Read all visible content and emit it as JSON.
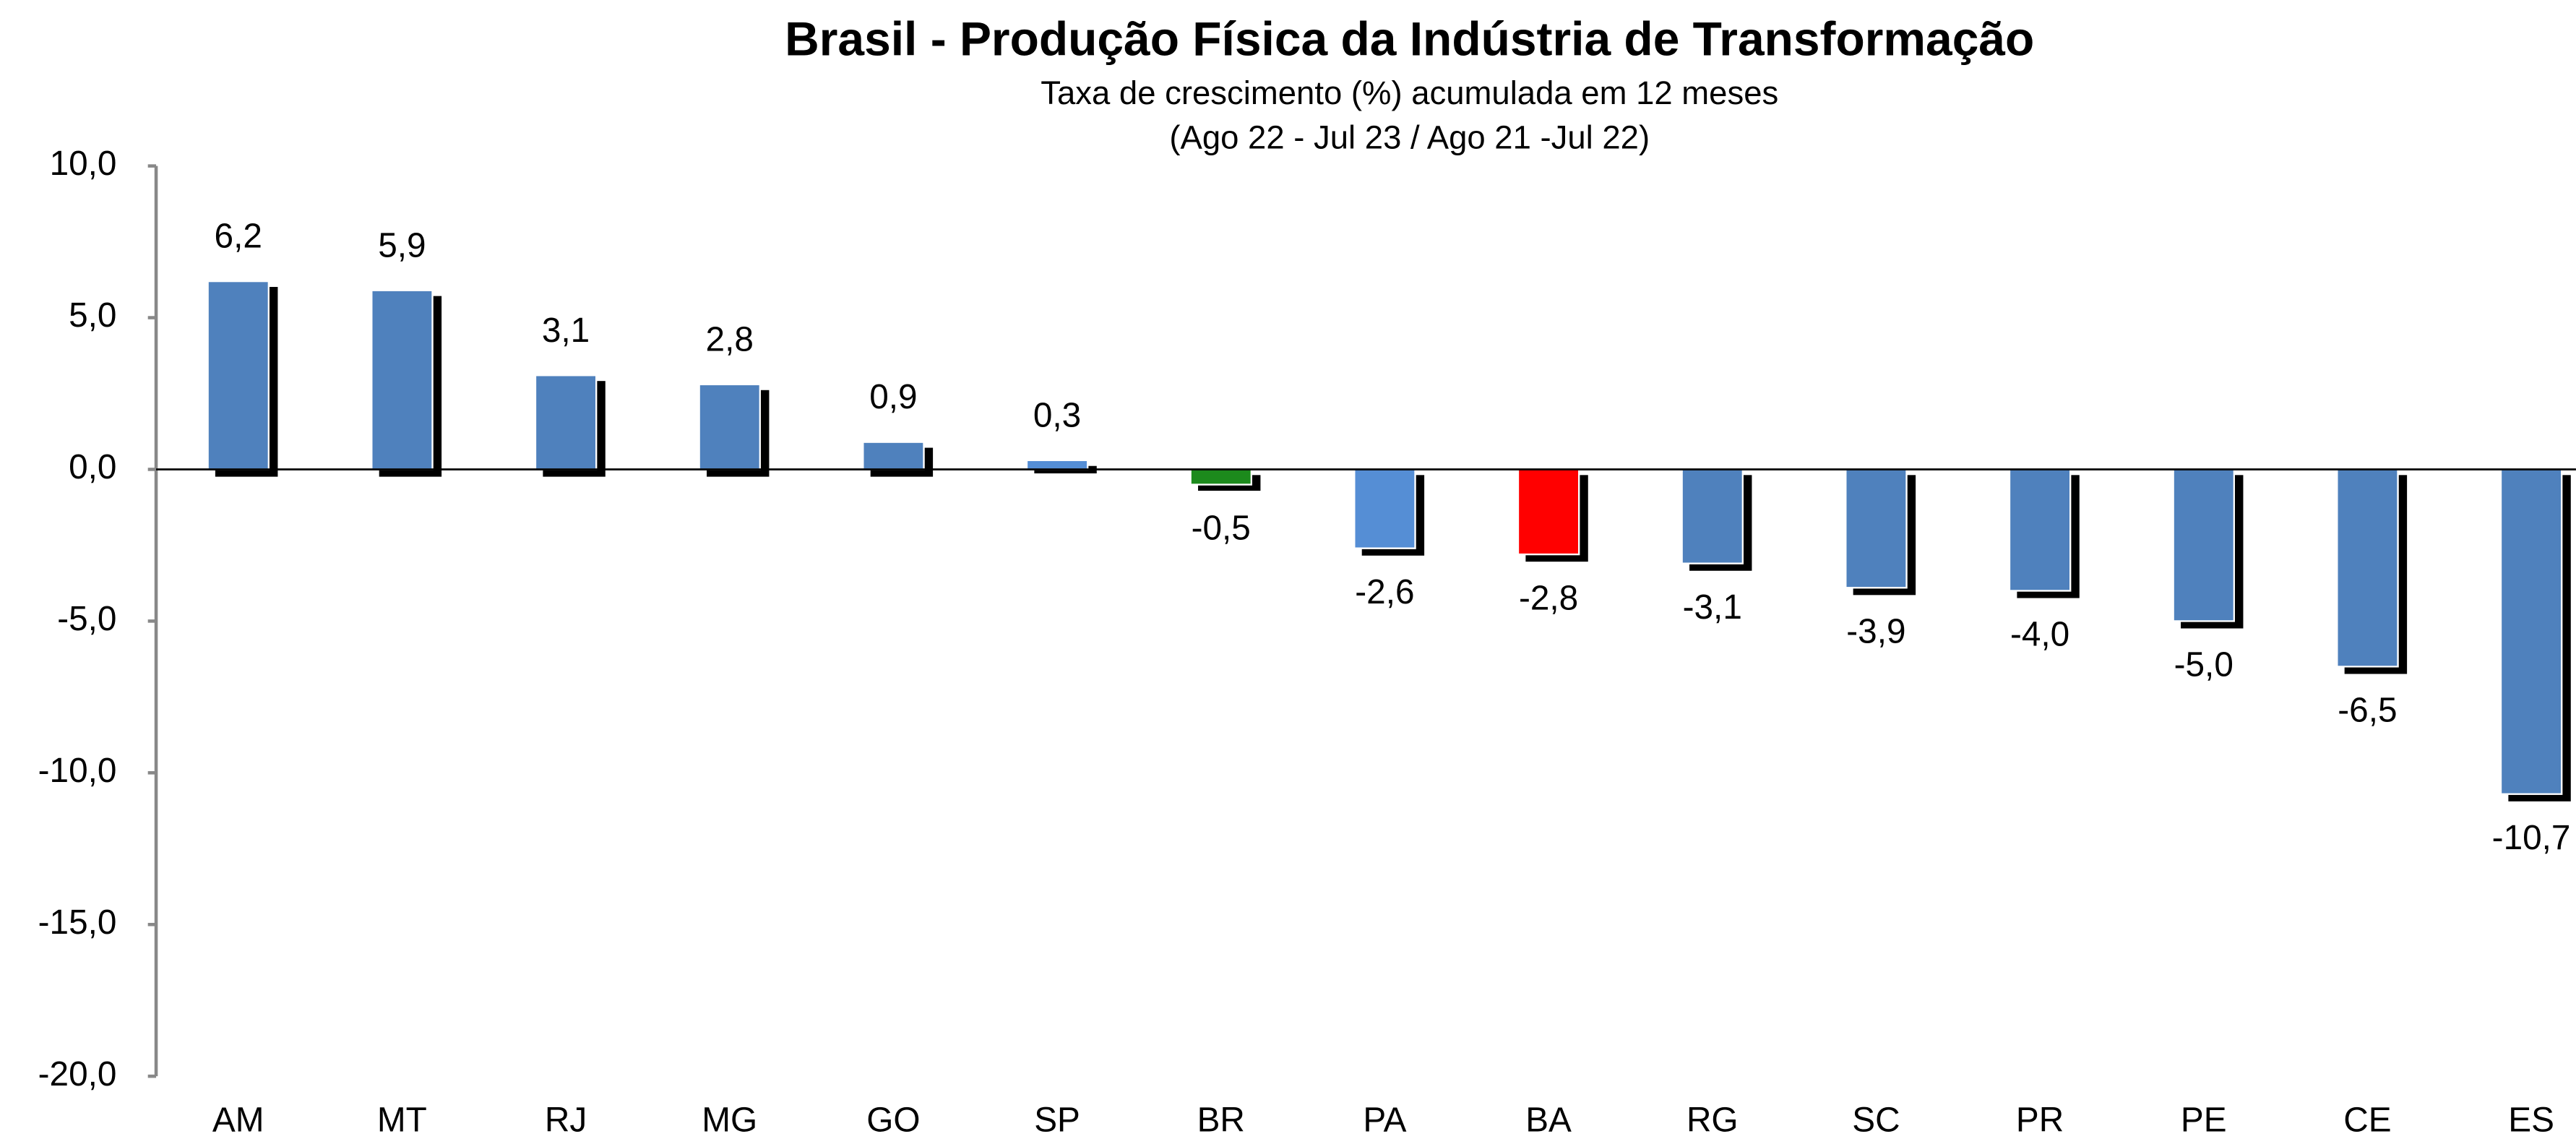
{
  "chart_data": {
    "type": "bar",
    "title": "Brasil - Produção Física da Indústria de Transformação",
    "subtitle": [
      "Taxa de crescimento (%) acumulada em 12 meses",
      "(Ago 22 - Jul 23  / Ago 21 -Jul 22)"
    ],
    "categories": [
      "AM",
      "MT",
      "RJ",
      "MG",
      "GO",
      "SP",
      "BR",
      "PA",
      "BA",
      "RG",
      "SC",
      "PR",
      "PE",
      "CE",
      "ES"
    ],
    "values": [
      6.2,
      5.9,
      3.1,
      2.8,
      0.9,
      0.3,
      -0.5,
      -2.6,
      -2.8,
      -3.1,
      -3.9,
      -4.0,
      -5.0,
      -6.5,
      -10.7
    ],
    "value_labels": [
      "6,2",
      "5,9",
      "3,1",
      "2,8",
      "0,9",
      "0,3",
      "-0,5",
      "-2,6",
      "-2,8",
      "-3,1",
      "-3,9",
      "-4,0",
      "-5,0",
      "-6,5",
      "-10,7"
    ],
    "colors": [
      "#4f81bd",
      "#4f81bd",
      "#4f81bd",
      "#4f81bd",
      "#4f81bd",
      "#558ed5",
      "#1e8a1e",
      "#558ed5",
      "#ff0000",
      "#4f81bd",
      "#4f81bd",
      "#4f81bd",
      "#4f81bd",
      "#4f81bd",
      "#4f81bd"
    ],
    "ylim": [
      -20,
      10
    ],
    "yticks": [
      {
        "value": 10,
        "label": "10,0"
      },
      {
        "value": 5,
        "label": "5,0"
      },
      {
        "value": 0,
        "label": "0,0"
      },
      {
        "value": -5,
        "label": "-5,0"
      },
      {
        "value": -10,
        "label": "-10,0"
      },
      {
        "value": -15,
        "label": "-15,0"
      },
      {
        "value": -20,
        "label": "-20,0"
      }
    ]
  }
}
